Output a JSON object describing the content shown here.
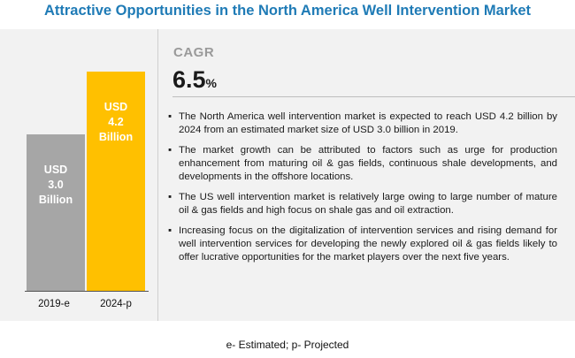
{
  "title": "Attractive Opportunities in the North America Well Intervention Market",
  "chart_data": {
    "type": "bar",
    "categories": [
      "2019-e",
      "2024-p"
    ],
    "values": [
      3.0,
      4.2
    ],
    "bar_labels": [
      [
        "USD",
        "3.0",
        "Billion"
      ],
      [
        "USD",
        "4.2",
        "Billion"
      ]
    ],
    "bar_colors": [
      "#a6a6a6",
      "#ffc000"
    ],
    "ylim": [
      0,
      4.4
    ],
    "grid": false
  },
  "cagr": {
    "label": "CAGR",
    "value": "6.5",
    "unit": "%"
  },
  "bullet_symbol": "▪",
  "points": [
    "The North America well intervention market is expected to reach USD 4.2 billion by 2024 from an estimated market size of USD 3.0 billion in 2019.",
    "The market growth can be attributed to factors such as urge for production enhancement from maturing oil & gas fields, continuous shale developments, and developments in the offshore locations.",
    "The US well intervention market is relatively large owing to large number of mature oil & gas fields and high focus on shale gas and oil extraction.",
    "Increasing focus on the digitalization of intervention services and rising demand for well intervention services for developing the newly explored oil & gas fields likely to offer lucrative opportunities for the market players over the next five years."
  ],
  "footnote": "e- Estimated;  p- Projected"
}
